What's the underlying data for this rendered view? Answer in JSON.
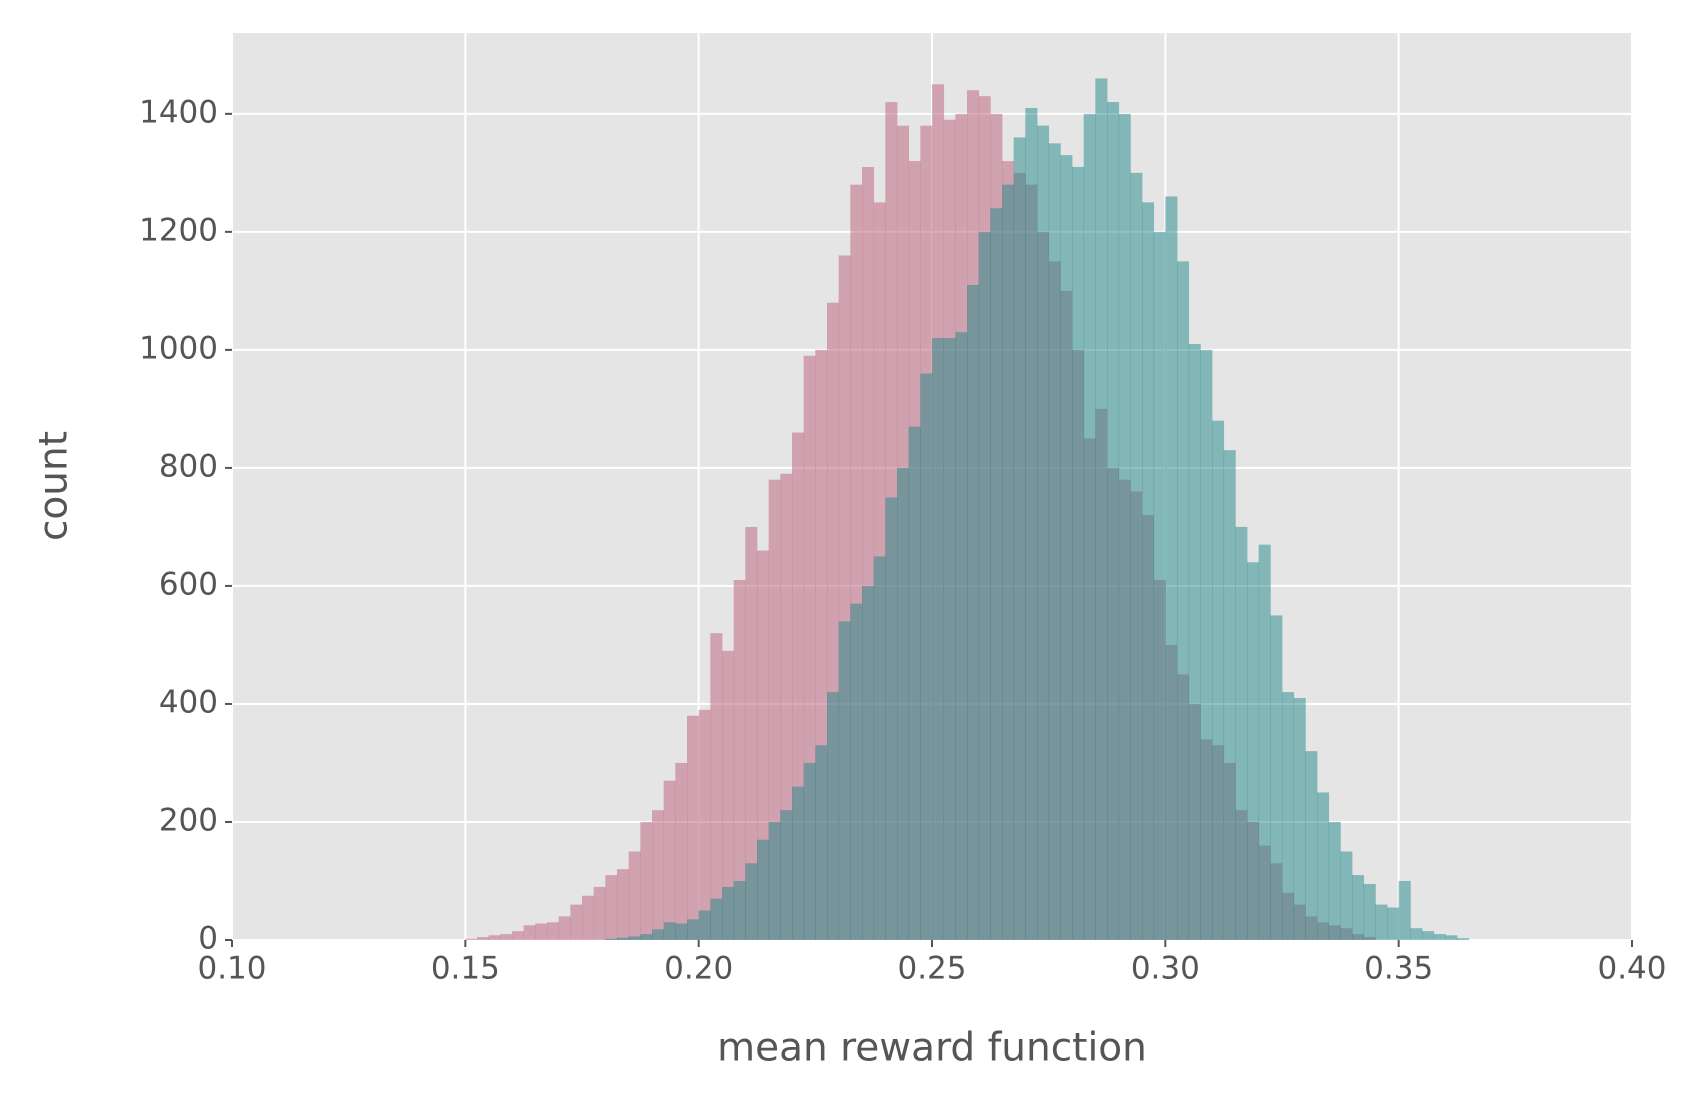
{
  "chart_data": {
    "type": "histogram",
    "xlabel": "mean reward function",
    "ylabel": "count",
    "xlim": [
      0.1,
      0.4
    ],
    "ylim": [
      0,
      1537
    ],
    "xticks": [
      {
        "value": 0.1,
        "label": "0.10"
      },
      {
        "value": 0.15,
        "label": "0.15"
      },
      {
        "value": 0.2,
        "label": "0.20"
      },
      {
        "value": 0.25,
        "label": "0.25"
      },
      {
        "value": 0.3,
        "label": "0.30"
      },
      {
        "value": 0.35,
        "label": "0.35"
      },
      {
        "value": 0.4,
        "label": "0.40"
      }
    ],
    "yticks": [
      0,
      200,
      400,
      600,
      800,
      1000,
      1200,
      1400
    ],
    "grid": true,
    "series": [
      {
        "color": "#c06c84",
        "opacity": 0.55,
        "bins": [
          0.15,
          0.1525,
          0.155,
          0.1575,
          0.16,
          0.1625,
          0.165,
          0.1675,
          0.17,
          0.1725,
          0.175,
          0.1775,
          0.18,
          0.1825,
          0.185,
          0.1875,
          0.19,
          0.1925,
          0.195,
          0.1975,
          0.2,
          0.2025,
          0.205,
          0.2075,
          0.21,
          0.2125,
          0.215,
          0.2175,
          0.22,
          0.2225,
          0.225,
          0.2275,
          0.23,
          0.2325,
          0.235,
          0.2375,
          0.24,
          0.2425,
          0.245,
          0.2475,
          0.25,
          0.2525,
          0.255,
          0.2575,
          0.26,
          0.2625,
          0.265,
          0.2675,
          0.27,
          0.2725,
          0.275,
          0.2775,
          0.28,
          0.2825,
          0.285,
          0.2875,
          0.29,
          0.2925,
          0.295,
          0.2975,
          0.3,
          0.3025,
          0.305,
          0.3075,
          0.31,
          0.3125,
          0.315,
          0.3175,
          0.32,
          0.3225,
          0.325,
          0.3275,
          0.33,
          0.3325,
          0.335,
          0.3375,
          0.34,
          0.3425,
          0.345
        ],
        "values": [
          2,
          5,
          8,
          10,
          15,
          25,
          28,
          30,
          40,
          60,
          75,
          90,
          110,
          120,
          150,
          200,
          220,
          270,
          300,
          380,
          390,
          520,
          490,
          610,
          700,
          660,
          780,
          790,
          860,
          990,
          1000,
          1080,
          1160,
          1280,
          1310,
          1250,
          1420,
          1380,
          1320,
          1380,
          1450,
          1390,
          1400,
          1440,
          1430,
          1400,
          1320,
          1300,
          1280,
          1200,
          1150,
          1100,
          1000,
          850,
          900,
          800,
          780,
          760,
          720,
          610,
          500,
          450,
          400,
          340,
          330,
          300,
          220,
          200,
          160,
          130,
          80,
          60,
          40,
          30,
          25,
          20,
          10,
          5
        ]
      },
      {
        "color": "#20878a",
        "opacity": 0.5,
        "bins": [
          0.18,
          0.1825,
          0.185,
          0.1875,
          0.19,
          0.1925,
          0.195,
          0.1975,
          0.2,
          0.2025,
          0.205,
          0.2075,
          0.21,
          0.2125,
          0.215,
          0.2175,
          0.22,
          0.2225,
          0.225,
          0.2275,
          0.23,
          0.2325,
          0.235,
          0.2375,
          0.24,
          0.2425,
          0.245,
          0.2475,
          0.25,
          0.2525,
          0.255,
          0.2575,
          0.26,
          0.2625,
          0.265,
          0.2675,
          0.27,
          0.2725,
          0.275,
          0.2775,
          0.28,
          0.2825,
          0.285,
          0.2875,
          0.29,
          0.2925,
          0.295,
          0.2975,
          0.3,
          0.3025,
          0.305,
          0.3075,
          0.31,
          0.3125,
          0.315,
          0.3175,
          0.32,
          0.3225,
          0.325,
          0.3275,
          0.33,
          0.3325,
          0.335,
          0.3375,
          0.34,
          0.3425,
          0.345,
          0.3475,
          0.35,
          0.3525,
          0.355,
          0.3575,
          0.36,
          0.3625,
          0.365
        ],
        "values": [
          2,
          4,
          6,
          10,
          18,
          30,
          28,
          35,
          50,
          70,
          90,
          100,
          130,
          170,
          200,
          220,
          260,
          300,
          330,
          420,
          540,
          570,
          600,
          650,
          750,
          800,
          870,
          960,
          1020,
          1020,
          1030,
          1110,
          1200,
          1240,
          1280,
          1360,
          1410,
          1380,
          1350,
          1330,
          1310,
          1400,
          1460,
          1420,
          1400,
          1300,
          1250,
          1200,
          1260,
          1150,
          1010,
          1000,
          880,
          830,
          700,
          640,
          670,
          550,
          420,
          410,
          320,
          250,
          200,
          150,
          110,
          95,
          60,
          55,
          100,
          20,
          15,
          10,
          8,
          3
        ]
      }
    ]
  }
}
